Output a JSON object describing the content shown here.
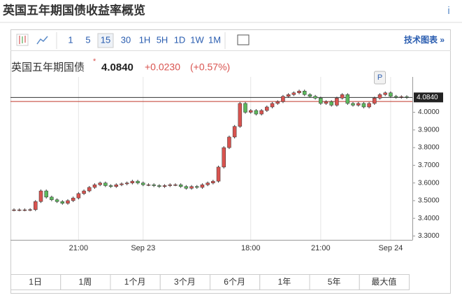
{
  "page": {
    "title": "英国五年期国债收益率概览",
    "info": "i",
    "toolbar": [
      "1",
      "5",
      "15",
      "30",
      "1H",
      "5H",
      "1D",
      "1W",
      "1M"
    ],
    "toolbar_active": 2,
    "tech_chart": "技术图表 »",
    "instrument": "英国五年期国债",
    "change": "+0.0230",
    "change_pct": "(+0.57%)",
    "ranges": [
      "1日",
      "1周",
      "1个月",
      "3个月",
      "6个月",
      "1年",
      "5年",
      "最大值"
    ]
  },
  "chart_data": {
    "type": "candlestick",
    "categories": [
      null,
      null,
      null,
      null,
      null,
      null,
      null,
      null,
      null,
      null,
      null,
      null,
      "21:00",
      null,
      null,
      null,
      null,
      null,
      null,
      null,
      null,
      null,
      null,
      null,
      "Sep 23",
      null,
      null,
      null,
      null,
      null,
      null,
      null,
      null,
      null,
      null,
      null,
      null,
      null,
      null,
      null,
      null,
      null,
      null,
      null,
      "18:00",
      null,
      null,
      null,
      null,
      null,
      null,
      null,
      null,
      null,
      null,
      null,
      null,
      "21:00",
      null,
      null,
      null,
      null,
      null,
      null,
      null,
      null,
      null,
      null,
      null,
      null,
      "Sep 24",
      null,
      null,
      null
    ],
    "open": [
      3.448,
      3.448,
      3.448,
      3.448,
      3.449,
      3.495,
      3.555,
      3.52,
      3.505,
      3.495,
      3.485,
      3.5,
      3.515,
      3.54,
      3.555,
      3.575,
      3.59,
      3.6,
      3.585,
      3.58,
      3.59,
      3.595,
      3.6,
      3.61,
      3.6,
      3.59,
      3.59,
      3.585,
      3.58,
      3.585,
      3.59,
      3.59,
      3.58,
      3.57,
      3.58,
      3.575,
      3.59,
      3.6,
      3.61,
      3.69,
      3.8,
      3.86,
      3.92,
      4.05,
      4.0,
      4.01,
      3.99,
      4.01,
      4.03,
      4.05,
      4.06,
      4.09,
      4.1,
      4.11,
      4.12,
      4.1,
      4.09,
      4.08,
      4.05,
      4.06,
      4.04,
      4.08,
      4.1,
      4.05,
      4.04,
      4.05,
      4.03,
      4.05,
      4.08,
      4.1,
      4.11,
      4.09,
      4.085,
      4.088
    ],
    "high": [
      3.456,
      3.456,
      3.456,
      3.457,
      3.503,
      3.563,
      3.563,
      3.528,
      3.513,
      3.503,
      3.508,
      3.523,
      3.548,
      3.563,
      3.583,
      3.598,
      3.608,
      3.608,
      3.593,
      3.598,
      3.603,
      3.608,
      3.618,
      3.618,
      3.608,
      3.598,
      3.598,
      3.593,
      3.593,
      3.598,
      3.598,
      3.598,
      3.588,
      3.588,
      3.588,
      3.598,
      3.608,
      3.618,
      3.698,
      3.808,
      3.868,
      3.928,
      4.058,
      4.058,
      4.018,
      4.018,
      4.018,
      4.038,
      4.058,
      4.068,
      4.098,
      4.108,
      4.118,
      4.128,
      4.128,
      4.108,
      4.098,
      4.088,
      4.068,
      4.068,
      4.088,
      4.108,
      4.108,
      4.058,
      4.058,
      4.058,
      4.058,
      4.088,
      4.108,
      4.118,
      4.118,
      4.098,
      4.096,
      4.096
    ],
    "low": [
      3.44,
      3.44,
      3.44,
      3.44,
      3.441,
      3.487,
      3.512,
      3.497,
      3.487,
      3.477,
      3.477,
      3.492,
      3.507,
      3.532,
      3.547,
      3.567,
      3.582,
      3.577,
      3.572,
      3.572,
      3.582,
      3.587,
      3.592,
      3.592,
      3.582,
      3.582,
      3.577,
      3.572,
      3.572,
      3.577,
      3.582,
      3.572,
      3.562,
      3.562,
      3.567,
      3.567,
      3.582,
      3.592,
      3.602,
      3.682,
      3.792,
      3.852,
      3.912,
      3.992,
      3.992,
      3.982,
      3.982,
      4.002,
      4.022,
      4.042,
      4.052,
      4.082,
      4.092,
      4.102,
      4.092,
      4.082,
      4.072,
      4.042,
      4.042,
      4.032,
      4.032,
      4.072,
      4.042,
      4.032,
      4.032,
      4.022,
      4.022,
      4.042,
      4.072,
      4.092,
      4.082,
      4.077,
      4.077,
      4.076
    ],
    "close": [
      3.448,
      3.448,
      3.448,
      3.449,
      3.495,
      3.555,
      3.52,
      3.505,
      3.495,
      3.485,
      3.5,
      3.515,
      3.54,
      3.555,
      3.575,
      3.59,
      3.6,
      3.585,
      3.58,
      3.59,
      3.595,
      3.6,
      3.61,
      3.6,
      3.59,
      3.59,
      3.585,
      3.58,
      3.585,
      3.59,
      3.59,
      3.58,
      3.57,
      3.58,
      3.575,
      3.59,
      3.6,
      3.61,
      3.69,
      3.8,
      3.86,
      3.92,
      4.05,
      4.0,
      4.01,
      3.99,
      4.01,
      4.03,
      4.05,
      4.06,
      4.09,
      4.1,
      4.11,
      4.12,
      4.1,
      4.09,
      4.08,
      4.05,
      4.06,
      4.04,
      4.08,
      4.1,
      4.05,
      4.04,
      4.05,
      4.03,
      4.05,
      4.08,
      4.1,
      4.11,
      4.09,
      4.085,
      4.088,
      4.084
    ],
    "up_color": "#d9534f",
    "down_color": "#5cb85c",
    "last_price": {
      "value": 4.084,
      "label": "4.0840"
    },
    "previous_close": 4.061,
    "marker": "P",
    "ylim": [
      3.29,
      4.2
    ],
    "yticks": [
      {
        "value": 3.3,
        "label": "3.3000"
      },
      {
        "value": 3.4,
        "label": "3.4000"
      },
      {
        "value": 3.5,
        "label": "3.5000"
      },
      {
        "value": 3.6,
        "label": "3.6000"
      },
      {
        "value": 3.7,
        "label": "3.7000"
      },
      {
        "value": 3.8,
        "label": "3.8000"
      },
      {
        "value": 3.9,
        "label": "3.9000"
      },
      {
        "value": 4.0,
        "label": "4.0000"
      }
    ],
    "grid": "x"
  }
}
